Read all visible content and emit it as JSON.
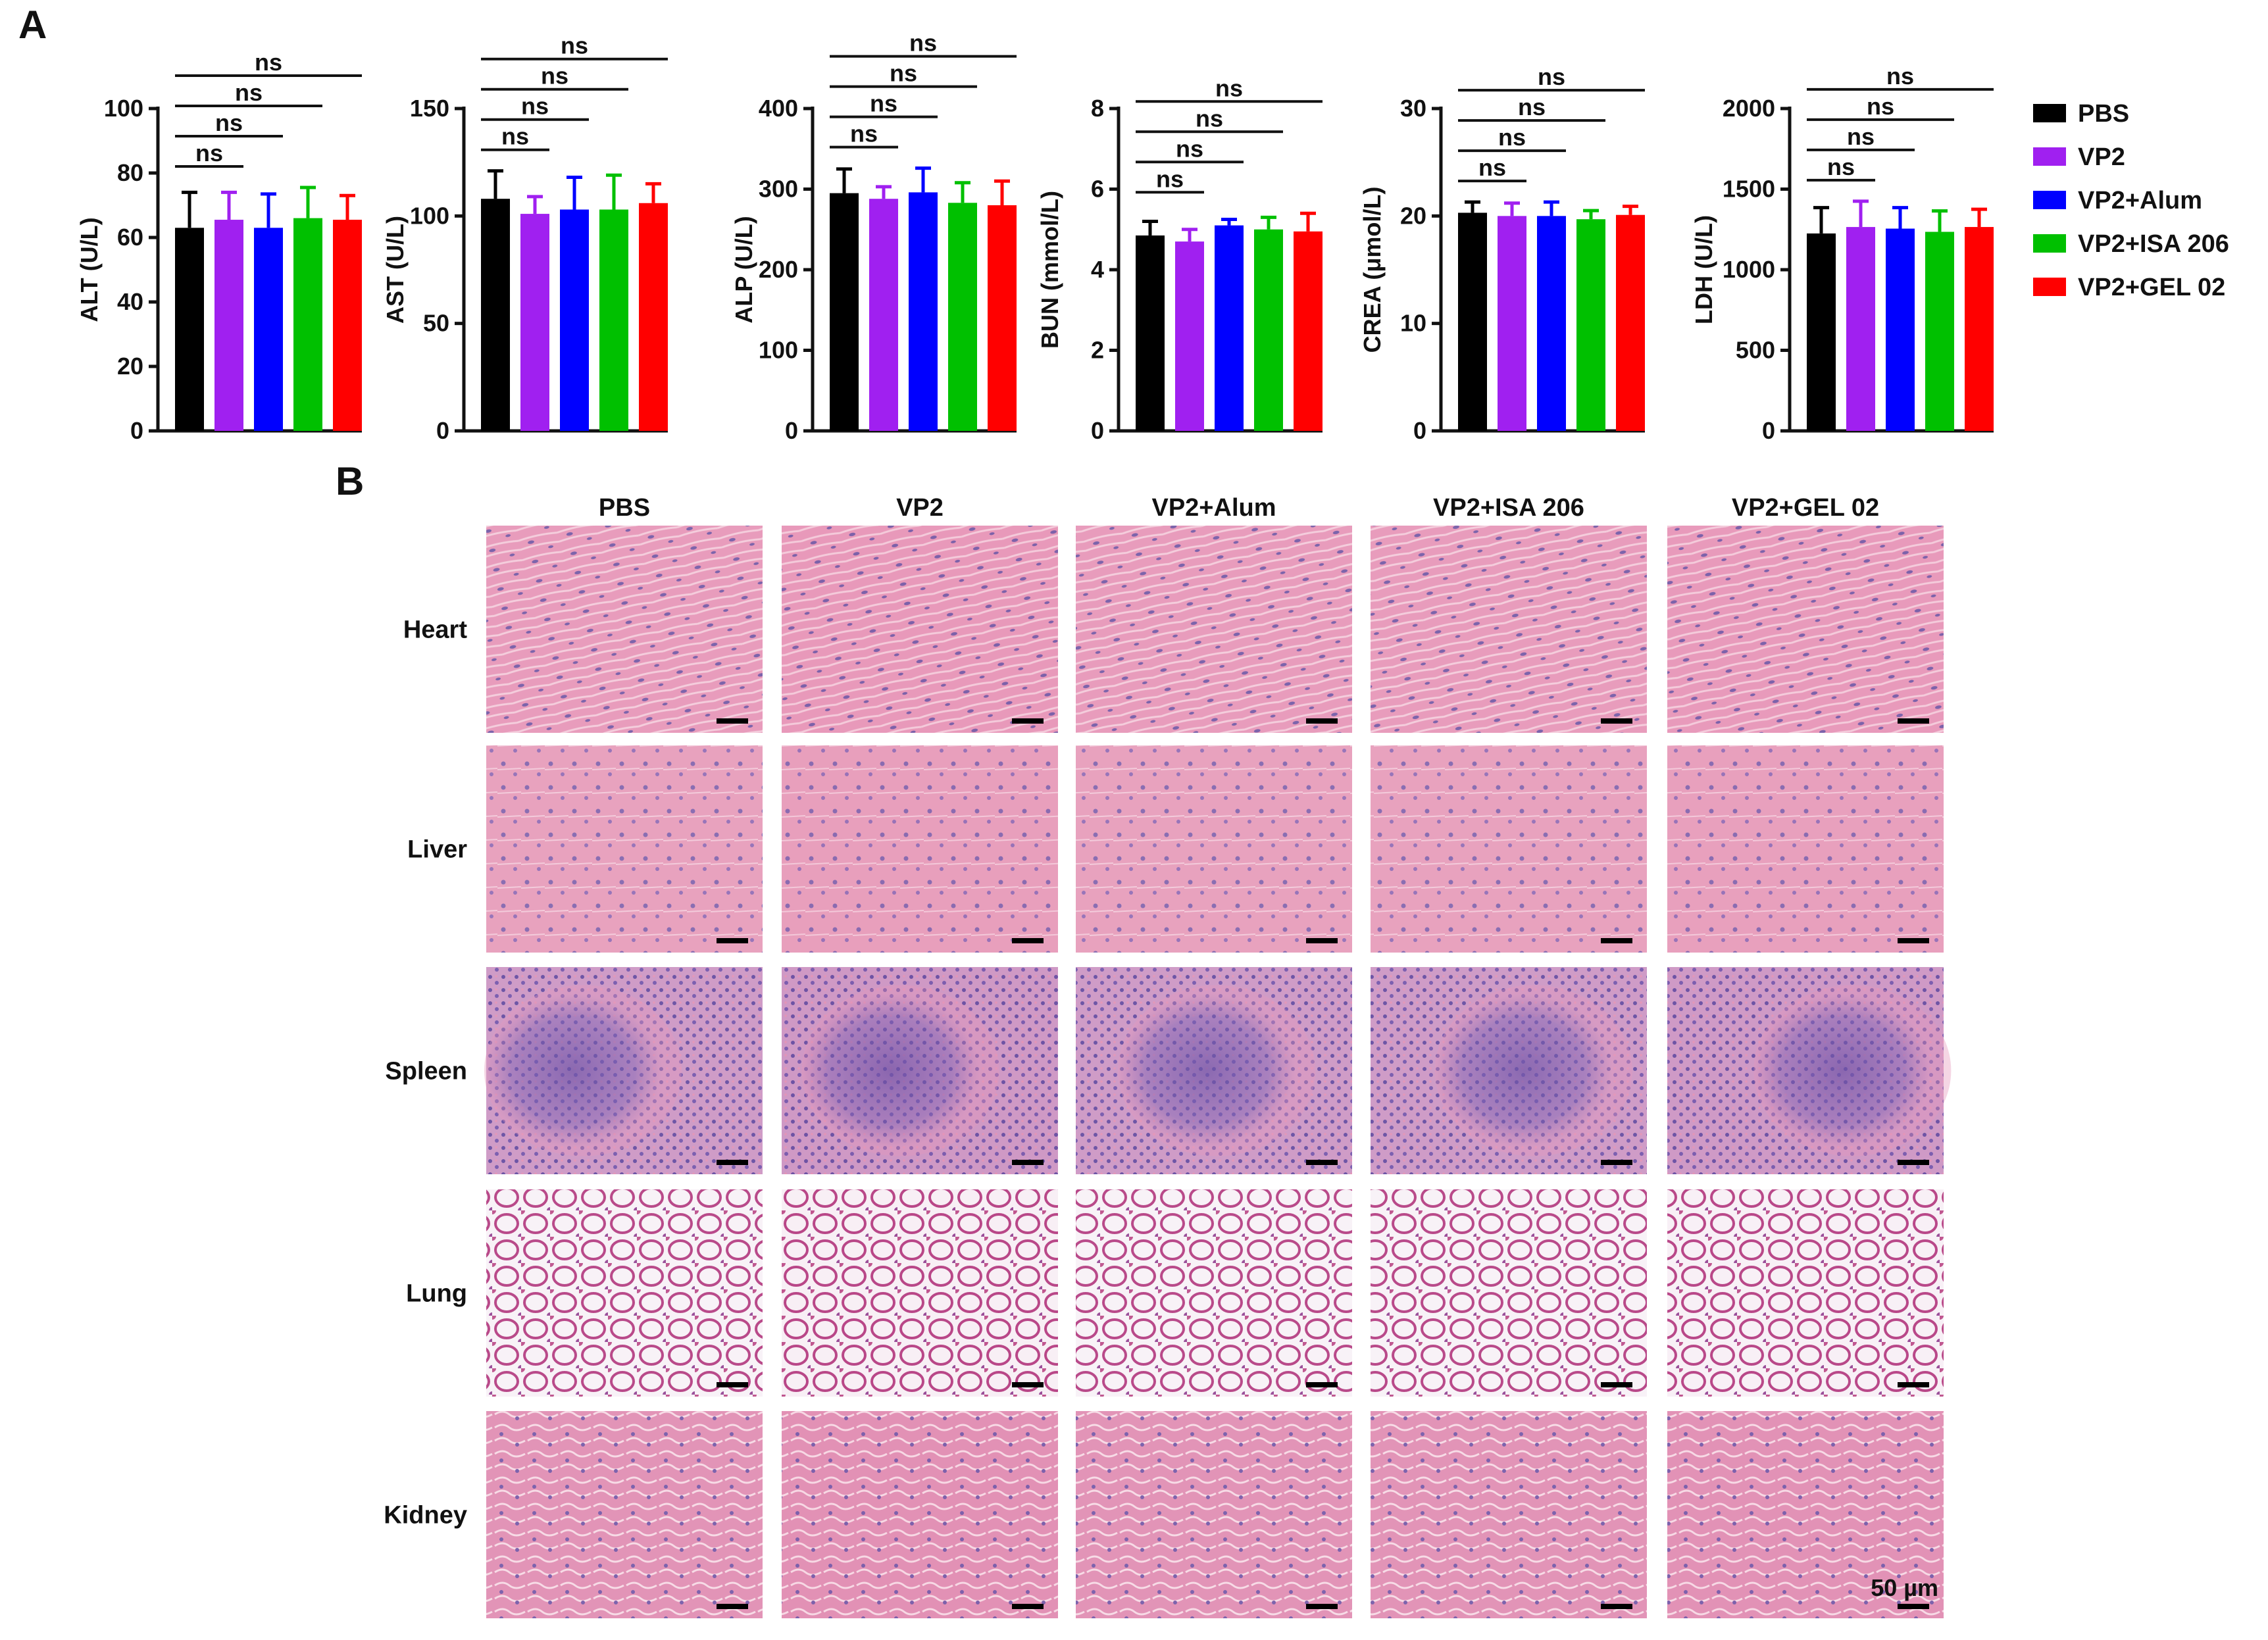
{
  "panels": {
    "a": "A",
    "b": "B"
  },
  "legend": {
    "position": "right",
    "entries": [
      {
        "name": "PBS",
        "color": "#000000"
      },
      {
        "name": "VP2",
        "color": "#a020f0"
      },
      {
        "name": "VP2+Alum",
        "color": "#0000ff"
      },
      {
        "name": "VP2+ISA 206",
        "color": "#00c000"
      },
      {
        "name": "VP2+GEL 02",
        "color": "#ff0000"
      }
    ]
  },
  "chart_data": [
    {
      "type": "bar",
      "ylabel": "ALT (U/L)",
      "values": [
        63,
        65.5,
        63,
        66,
        65.5
      ],
      "errors": [
        11,
        8.5,
        10.5,
        9.5,
        7.5
      ],
      "ylim": [
        0,
        100
      ],
      "yticks": [
        0,
        20,
        40,
        60,
        80,
        100
      ],
      "annotations": [
        "ns",
        "ns",
        "ns",
        "ns"
      ]
    },
    {
      "type": "bar",
      "ylabel": "AST (U/L)",
      "values": [
        108,
        101,
        103,
        103,
        106
      ],
      "errors": [
        13,
        8,
        15,
        16,
        9
      ],
      "ylim": [
        0,
        150
      ],
      "yticks": [
        0,
        50,
        100,
        150
      ],
      "annotations": [
        "ns",
        "ns",
        "ns",
        "ns"
      ]
    },
    {
      "type": "bar",
      "ylabel": "ALP (U/L)",
      "values": [
        295,
        288,
        296,
        283,
        280
      ],
      "errors": [
        30,
        15,
        30,
        25,
        30
      ],
      "ylim": [
        0,
        400
      ],
      "yticks": [
        0,
        100,
        200,
        300,
        400
      ],
      "annotations": [
        "ns",
        "ns",
        "ns",
        "ns"
      ]
    },
    {
      "type": "bar",
      "ylabel": "BUN (mmol/L)",
      "values": [
        4.85,
        4.7,
        5.1,
        5.0,
        4.95
      ],
      "errors": [
        0.35,
        0.3,
        0.15,
        0.3,
        0.45
      ],
      "ylim": [
        0,
        8
      ],
      "yticks": [
        0,
        2,
        4,
        6,
        8
      ],
      "annotations": [
        "ns",
        "ns",
        "ns",
        "ns"
      ]
    },
    {
      "type": "bar",
      "ylabel": "CREA (μmol/L)",
      "values": [
        20.3,
        20.0,
        20.0,
        19.7,
        20.1
      ],
      "errors": [
        1.0,
        1.2,
        1.3,
        0.8,
        0.8
      ],
      "ylim": [
        0,
        30
      ],
      "yticks": [
        0,
        10,
        20,
        30
      ],
      "annotations": [
        "ns",
        "ns",
        "ns",
        "ns"
      ]
    },
    {
      "type": "bar",
      "ylabel": "LDH (U/L)",
      "values": [
        1225,
        1265,
        1255,
        1235,
        1265
      ],
      "errors": [
        160,
        160,
        130,
        130,
        110
      ],
      "ylim": [
        0,
        2000
      ],
      "yticks": [
        0,
        500,
        1000,
        1500,
        2000
      ],
      "annotations": [
        "ns",
        "ns",
        "ns",
        "ns"
      ]
    }
  ],
  "histology": {
    "columns": [
      "PBS",
      "VP2",
      "VP2+Alum",
      "VP2+ISA 206",
      "VP2+GEL 02"
    ],
    "rows": [
      "Heart",
      "Liver",
      "Spleen",
      "Lung",
      "Kidney"
    ],
    "scale_label": "50 µm"
  }
}
